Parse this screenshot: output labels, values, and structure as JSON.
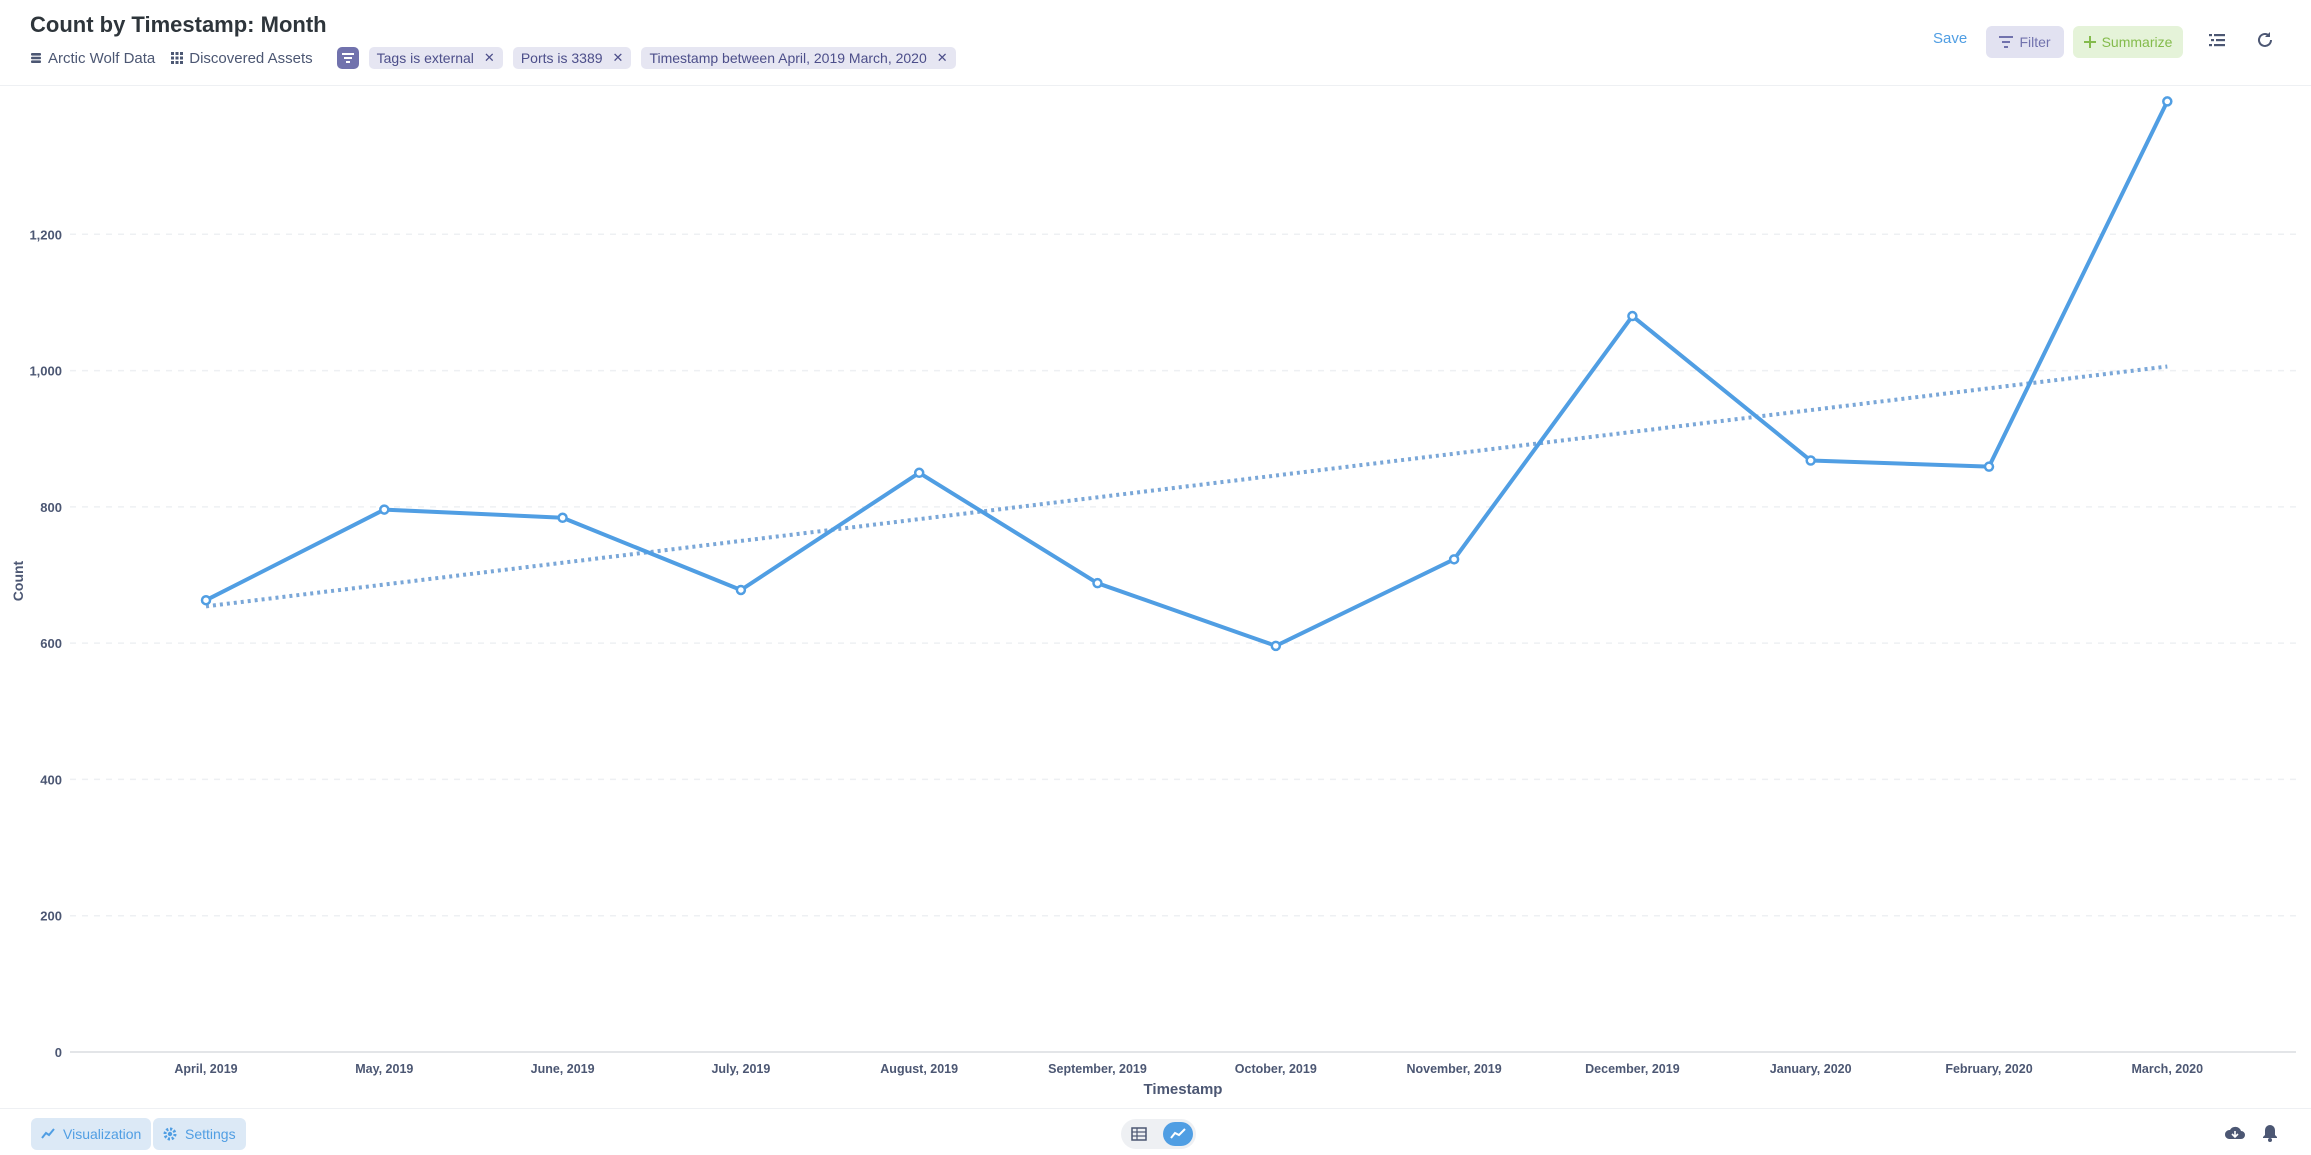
{
  "header": {
    "title": "Count by Timestamp: Month",
    "database": "Arctic Wolf Data",
    "table": "Discovered Assets",
    "filters": [
      {
        "label": "Tags is external"
      },
      {
        "label": "Ports is 3389"
      },
      {
        "label": "Timestamp between April, 2019 March, 2020"
      }
    ],
    "save_label": "Save",
    "filter_label": "Filter",
    "summarize_label": "Summarize"
  },
  "footer": {
    "visualization_label": "Visualization",
    "settings_label": "Settings"
  },
  "colors": {
    "line": "#509ee3",
    "trend": "#7aa7d8",
    "accent_purple": "#7172ad",
    "accent_green": "#84bb4c"
  },
  "chart_data": {
    "type": "line",
    "categories": [
      "April, 2019",
      "May, 2019",
      "June, 2019",
      "July, 2019",
      "August, 2019",
      "September, 2019",
      "October, 2019",
      "November, 2019",
      "December, 2019",
      "January, 2020",
      "February, 2020",
      "March, 2020"
    ],
    "series": [
      {
        "values": [
          663,
          796,
          784,
          678,
          850,
          688,
          596,
          723,
          1080,
          868,
          859,
          1395
        ]
      }
    ],
    "trendline": {
      "start": 654,
      "end": 1006
    },
    "xlabel": "Timestamp",
    "ylabel": "Count",
    "ylim": [
      0,
      1400
    ],
    "yticks": [
      0,
      200,
      400,
      600,
      800,
      1000,
      1200
    ],
    "ytick_labels": [
      "0",
      "200",
      "400",
      "600",
      "800",
      "1,000",
      "1,200"
    ],
    "grid": true
  }
}
